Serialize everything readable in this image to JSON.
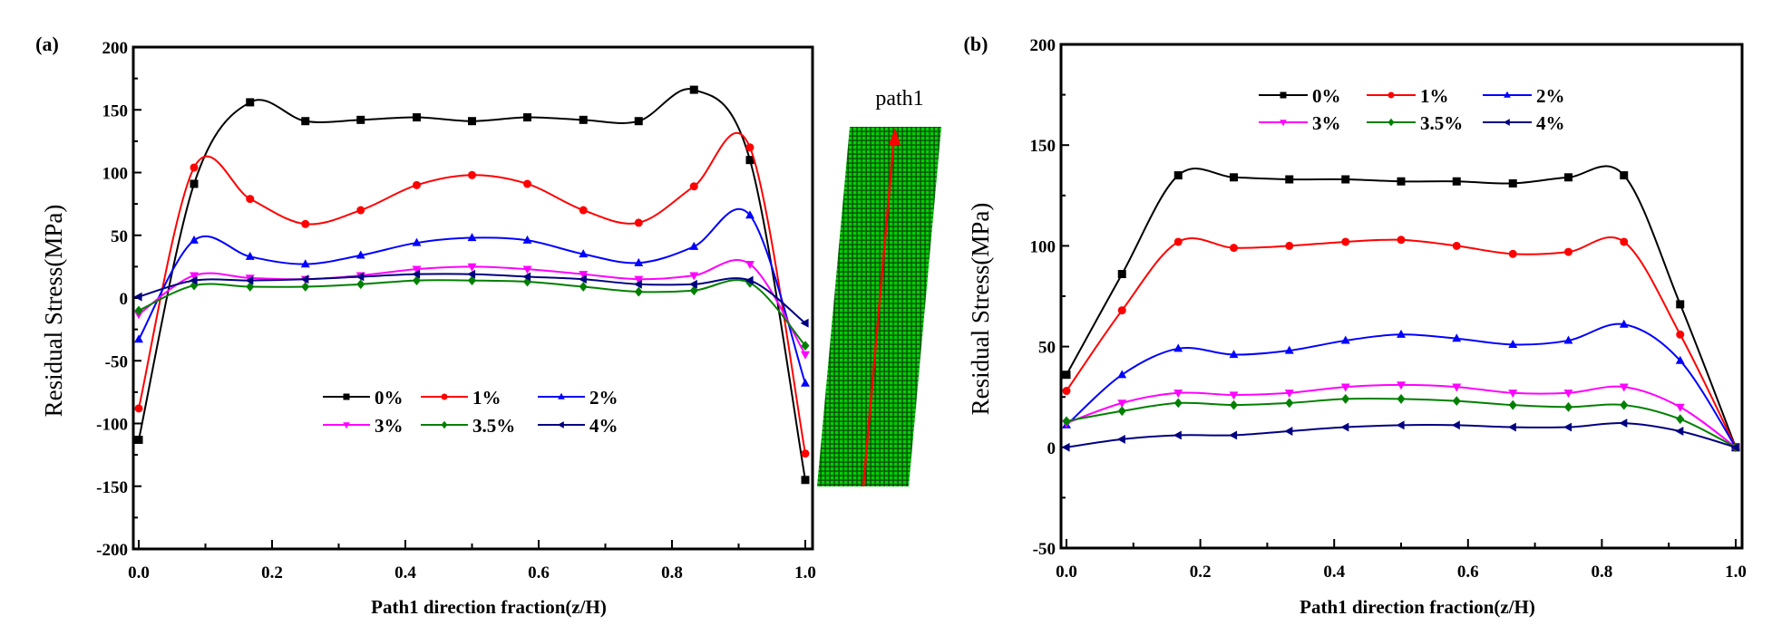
{
  "chart_data": [
    {
      "type": "line",
      "panel_label": "(a)",
      "xlabel": "Path1 direction fraction(z/H)",
      "ylabel": "Residual Stress(MPa)",
      "xlim": [
        0,
        1.0
      ],
      "ylim": [
        -200,
        200
      ],
      "xticks": [
        "0.0",
        "0.2",
        "0.4",
        "0.6",
        "0.8",
        "1.0"
      ],
      "yticks": [
        "-200",
        "-150",
        "-100",
        "-50",
        "0",
        "50",
        "100",
        "150",
        "200"
      ],
      "grid": false,
      "legend_placement": "center",
      "x": [
        0,
        0.083,
        0.167,
        0.25,
        0.333,
        0.417,
        0.5,
        0.583,
        0.667,
        0.75,
        0.833,
        0.917,
        1.0
      ],
      "series": [
        {
          "name": "0%",
          "color": "#000000",
          "marker": "square",
          "values": [
            -113,
            91,
            156,
            141,
            142,
            144,
            141,
            144,
            142,
            141,
            166,
            110,
            -145
          ]
        },
        {
          "name": "1%",
          "color": "#ff0000",
          "marker": "circle",
          "values": [
            -88,
            104,
            79,
            59,
            70,
            90,
            98,
            91,
            70,
            60,
            89,
            120,
            -124
          ]
        },
        {
          "name": "2%",
          "color": "#0000ff",
          "marker": "triangle-up",
          "values": [
            -33,
            46,
            33,
            27,
            34,
            44,
            48,
            46,
            35,
            28,
            41,
            66,
            -68
          ]
        },
        {
          "name": "3%",
          "color": "#ff00ff",
          "marker": "triangle-down",
          "values": [
            -13,
            18,
            16,
            15,
            18,
            23,
            25,
            23,
            19,
            15,
            18,
            27,
            -45
          ]
        },
        {
          "name": "3.5%",
          "color": "#008000",
          "marker": "diamond",
          "values": [
            -10,
            10,
            9,
            9,
            11,
            14,
            14,
            13,
            9,
            5,
            6,
            12,
            -38
          ]
        },
        {
          "name": "4%",
          "color": "#000080",
          "marker": "triangle-left",
          "values": [
            1,
            14,
            14,
            15,
            17,
            19,
            19,
            17,
            15,
            11,
            11,
            14,
            -20
          ]
        }
      ]
    },
    {
      "type": "line",
      "panel_label": "(b)",
      "xlabel": "Path1 direction fraction(z/H)",
      "ylabel": "Residual Stress(MPa)",
      "xlim": [
        0,
        1.0
      ],
      "ylim": [
        -50,
        200
      ],
      "xticks": [
        "0.0",
        "0.2",
        "0.4",
        "0.6",
        "0.8",
        "1.0"
      ],
      "yticks": [
        "-50",
        "0",
        "50",
        "100",
        "150",
        "200"
      ],
      "grid": false,
      "legend_placement": "top-center",
      "x": [
        0,
        0.083,
        0.167,
        0.25,
        0.333,
        0.417,
        0.5,
        0.583,
        0.667,
        0.75,
        0.833,
        0.917,
        1.0
      ],
      "series": [
        {
          "name": "0%",
          "color": "#000000",
          "marker": "square",
          "values": [
            36,
            86,
            135,
            134,
            133,
            133,
            132,
            132,
            131,
            134,
            135,
            71,
            0
          ]
        },
        {
          "name": "1%",
          "color": "#ff0000",
          "marker": "circle",
          "values": [
            28,
            68,
            102,
            99,
            100,
            102,
            103,
            100,
            96,
            97,
            102,
            56,
            0
          ]
        },
        {
          "name": "2%",
          "color": "#0000ff",
          "marker": "triangle-up",
          "values": [
            11,
            36,
            49,
            46,
            48,
            53,
            56,
            54,
            51,
            53,
            61,
            43,
            0
          ]
        },
        {
          "name": "3%",
          "color": "#ff00ff",
          "marker": "triangle-down",
          "values": [
            12,
            22,
            27,
            26,
            27,
            30,
            31,
            30,
            27,
            27,
            30,
            20,
            0
          ]
        },
        {
          "name": "3.5%",
          "color": "#008000",
          "marker": "diamond",
          "values": [
            13,
            18,
            22,
            21,
            22,
            24,
            24,
            23,
            21,
            20,
            21,
            14,
            0
          ]
        },
        {
          "name": "4%",
          "color": "#000080",
          "marker": "triangle-left",
          "values": [
            0,
            4,
            6,
            6,
            8,
            10,
            11,
            11,
            10,
            10,
            12,
            8,
            0
          ]
        }
      ]
    }
  ],
  "inset": {
    "label": "path1",
    "mesh_color": "#00c000",
    "arrow_color": "#ff0000"
  }
}
